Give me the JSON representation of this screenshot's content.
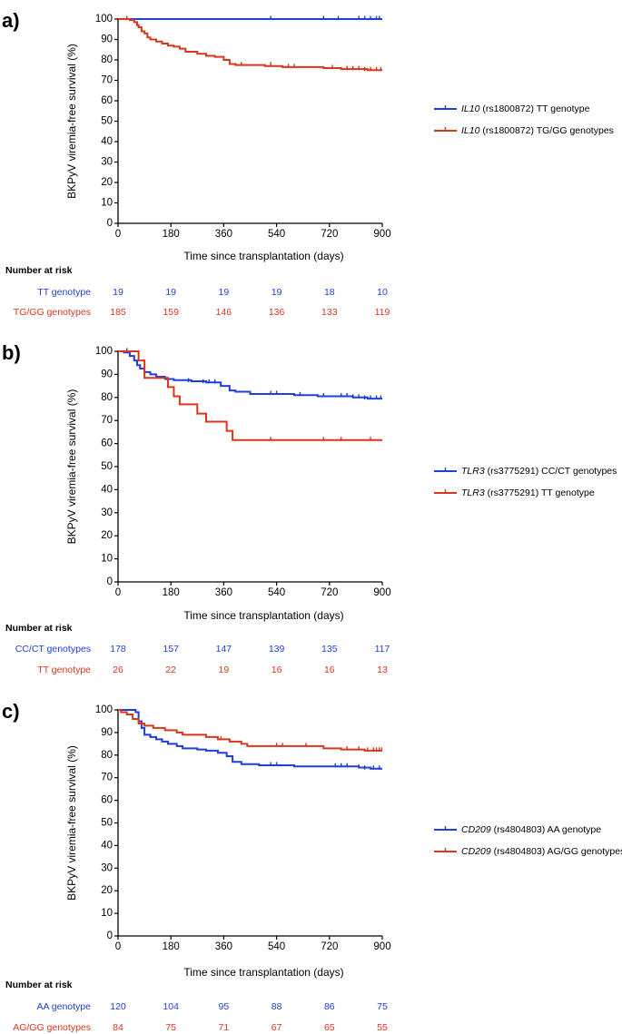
{
  "colors": {
    "blue": "#1f3fd8",
    "red": "#d9361e",
    "axis": "#000000"
  },
  "chart_data": [
    {
      "type": "line",
      "panel": "a)",
      "xlabel": "Time since transplantation (days)",
      "ylabel": "BKPyV viremia-free survival (%)",
      "xticks": [
        0,
        180,
        360,
        540,
        720,
        900
      ],
      "yticks": [
        0,
        10,
        20,
        30,
        40,
        50,
        60,
        70,
        80,
        90,
        100
      ],
      "xlim": [
        0,
        900
      ],
      "ylim": [
        0,
        100
      ],
      "series": [
        {
          "gene": "IL10",
          "rest": " (rs1800872) TT genotype",
          "color": "blue",
          "steps": [
            [
              0,
              100
            ],
            [
              900,
              100
            ]
          ],
          "censor": [
            [
              30,
              100
            ],
            [
              520,
              100
            ],
            [
              700,
              100
            ],
            [
              750,
              100
            ],
            [
              820,
              100
            ],
            [
              840,
              100
            ],
            [
              860,
              100
            ],
            [
              880,
              100
            ],
            [
              890,
              100
            ]
          ]
        },
        {
          "gene": "IL10",
          "rest": " (rs1800872) TG/GG genotypes",
          "color": "red",
          "steps": [
            [
              0,
              100
            ],
            [
              40,
              99.5
            ],
            [
              55,
              98.5
            ],
            [
              65,
              97
            ],
            [
              70,
              96
            ],
            [
              80,
              94
            ],
            [
              90,
              93
            ],
            [
              100,
              91
            ],
            [
              110,
              90
            ],
            [
              130,
              89
            ],
            [
              150,
              88
            ],
            [
              170,
              87
            ],
            [
              190,
              86.5
            ],
            [
              210,
              85.5
            ],
            [
              230,
              84
            ],
            [
              270,
              83
            ],
            [
              300,
              82
            ],
            [
              330,
              81.5
            ],
            [
              360,
              80
            ],
            [
              380,
              78
            ],
            [
              400,
              77.5
            ],
            [
              500,
              77
            ],
            [
              560,
              76.5
            ],
            [
              700,
              76
            ],
            [
              760,
              75.5
            ],
            [
              850,
              75
            ],
            [
              900,
              75
            ]
          ],
          "censor": [
            [
              30,
              100
            ],
            [
              420,
              77.5
            ],
            [
              520,
              77.5
            ],
            [
              580,
              76.5
            ],
            [
              600,
              76.5
            ],
            [
              730,
              76
            ],
            [
              780,
              75.5
            ],
            [
              800,
              75.5
            ],
            [
              820,
              75.5
            ],
            [
              840,
              75
            ],
            [
              860,
              75
            ],
            [
              880,
              75
            ],
            [
              895,
              75
            ]
          ]
        }
      ],
      "risk": {
        "title": "Number at risk",
        "rows": [
          {
            "label": "TT genotype",
            "color": "blue",
            "values": [
              "19",
              "19",
              "19",
              "19",
              "18",
              "10"
            ]
          },
          {
            "label": "TG/GG genotypes",
            "color": "red",
            "values": [
              "185",
              "159",
              "146",
              "136",
              "133",
              "119"
            ]
          }
        ]
      }
    },
    {
      "type": "line",
      "panel": "b)",
      "xlabel": "Time since transplantation (days)",
      "ylabel": "BKPyV viremia-free survival (%)",
      "xticks": [
        0,
        180,
        360,
        540,
        720,
        900
      ],
      "yticks": [
        0,
        10,
        20,
        30,
        40,
        50,
        60,
        70,
        80,
        90,
        100
      ],
      "xlim": [
        0,
        900
      ],
      "ylim": [
        0,
        100
      ],
      "series": [
        {
          "gene": "TLR3",
          "rest": " (rs3775291) CC/CT genotypes",
          "color": "blue",
          "steps": [
            [
              0,
              100
            ],
            [
              20,
              99.5
            ],
            [
              40,
              98
            ],
            [
              55,
              96
            ],
            [
              65,
              94
            ],
            [
              75,
              92.5
            ],
            [
              90,
              91
            ],
            [
              110,
              90
            ],
            [
              130,
              89
            ],
            [
              160,
              88
            ],
            [
              190,
              87.5
            ],
            [
              250,
              87
            ],
            [
              300,
              86.5
            ],
            [
              350,
              85
            ],
            [
              380,
              83
            ],
            [
              400,
              82.5
            ],
            [
              450,
              81.5
            ],
            [
              600,
              81
            ],
            [
              680,
              80.5
            ],
            [
              800,
              80
            ],
            [
              850,
              79.5
            ],
            [
              900,
              79.5
            ]
          ],
          "censor": [
            [
              30,
              100
            ],
            [
              240,
              87
            ],
            [
              290,
              86.5
            ],
            [
              310,
              86.5
            ],
            [
              330,
              86.5
            ],
            [
              520,
              81.5
            ],
            [
              540,
              81.5
            ],
            [
              620,
              81
            ],
            [
              700,
              80.5
            ],
            [
              760,
              80.5
            ],
            [
              780,
              80.5
            ],
            [
              800,
              80
            ],
            [
              820,
              80
            ],
            [
              840,
              79.5
            ],
            [
              860,
              79.5
            ],
            [
              880,
              79.5
            ],
            [
              895,
              79.5
            ]
          ]
        },
        {
          "gene": "TLR3",
          "rest": " (rs3775291) TT genotype",
          "color": "red",
          "steps": [
            [
              0,
              100
            ],
            [
              70,
              96
            ],
            [
              90,
              88.5
            ],
            [
              170,
              84.5
            ],
            [
              190,
              80.5
            ],
            [
              210,
              77
            ],
            [
              270,
              73
            ],
            [
              300,
              69.5
            ],
            [
              370,
              65.5
            ],
            [
              390,
              61.5
            ],
            [
              900,
              61.5
            ]
          ],
          "censor": [
            [
              520,
              61.5
            ],
            [
              700,
              61.5
            ],
            [
              760,
              61.5
            ],
            [
              860,
              61.5
            ]
          ]
        }
      ],
      "risk": {
        "title": "Number at risk",
        "rows": [
          {
            "label": "CC/CT genotypes",
            "color": "blue",
            "values": [
              "178",
              "157",
              "147",
              "139",
              "135",
              "117"
            ]
          },
          {
            "label": "TT genotype",
            "color": "red",
            "values": [
              "26",
              "22",
              "19",
              "16",
              "16",
              "13"
            ]
          }
        ]
      }
    },
    {
      "type": "line",
      "panel": "c)",
      "xlabel": "Time since transplantation (days)",
      "ylabel": "BKPyV viremia-free survival (%)",
      "xticks": [
        0,
        180,
        360,
        540,
        720,
        900
      ],
      "yticks": [
        0,
        10,
        20,
        30,
        40,
        50,
        60,
        70,
        80,
        90,
        100
      ],
      "xlim": [
        0,
        900
      ],
      "ylim": [
        0,
        100
      ],
      "series": [
        {
          "gene": "CD209",
          "rest": " (rs4804803) AA genotype",
          "color": "blue",
          "steps": [
            [
              0,
              100
            ],
            [
              60,
              99
            ],
            [
              70,
              95
            ],
            [
              80,
              92
            ],
            [
              90,
              89
            ],
            [
              110,
              88
            ],
            [
              130,
              87
            ],
            [
              150,
              86
            ],
            [
              170,
              85
            ],
            [
              200,
              84
            ],
            [
              220,
              83
            ],
            [
              270,
              82.5
            ],
            [
              300,
              82
            ],
            [
              340,
              81
            ],
            [
              370,
              79.5
            ],
            [
              390,
              77
            ],
            [
              420,
              76
            ],
            [
              480,
              75.5
            ],
            [
              600,
              75
            ],
            [
              820,
              74.5
            ],
            [
              860,
              74
            ],
            [
              900,
              74
            ]
          ],
          "censor": [
            [
              520,
              75.5
            ],
            [
              540,
              75.5
            ],
            [
              740,
              75
            ],
            [
              760,
              75
            ],
            [
              780,
              75
            ],
            [
              820,
              74.5
            ],
            [
              840,
              74
            ],
            [
              870,
              74
            ],
            [
              890,
              74
            ]
          ]
        },
        {
          "gene": "CD209",
          "rest": " (rs4804803) AG/GG genotypes",
          "color": "red",
          "steps": [
            [
              0,
              100
            ],
            [
              10,
              99
            ],
            [
              30,
              98
            ],
            [
              50,
              96
            ],
            [
              70,
              94
            ],
            [
              90,
              93
            ],
            [
              120,
              92
            ],
            [
              160,
              91
            ],
            [
              200,
              90
            ],
            [
              220,
              89
            ],
            [
              300,
              88
            ],
            [
              340,
              87
            ],
            [
              380,
              86
            ],
            [
              420,
              85
            ],
            [
              440,
              84
            ],
            [
              700,
              83
            ],
            [
              760,
              82.5
            ],
            [
              840,
              82
            ],
            [
              900,
              82
            ]
          ],
          "censor": [
            [
              30,
              98
            ],
            [
              350,
              87
            ],
            [
              540,
              84
            ],
            [
              560,
              84
            ],
            [
              640,
              84
            ],
            [
              780,
              82.5
            ],
            [
              820,
              82.5
            ],
            [
              850,
              82
            ],
            [
              870,
              82
            ],
            [
              880,
              82
            ],
            [
              890,
              82
            ],
            [
              898,
              82
            ]
          ]
        }
      ],
      "risk": {
        "title": "Number at risk",
        "rows": [
          {
            "label": "AA genotype",
            "color": "blue",
            "values": [
              "120",
              "104",
              "95",
              "88",
              "86",
              "75"
            ]
          },
          {
            "label": "AG/GG genotypes",
            "color": "red",
            "values": [
              "84",
              "75",
              "71",
              "67",
              "65",
              "55"
            ]
          }
        ]
      }
    }
  ]
}
